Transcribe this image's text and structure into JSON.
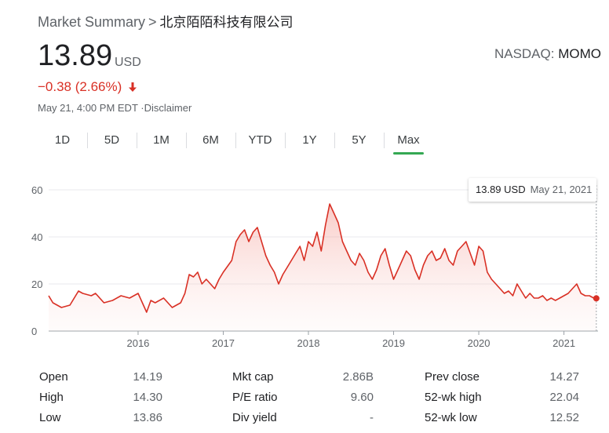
{
  "breadcrumb": {
    "section": "Market Summary",
    "separator": ">",
    "company": "北京陌陌科技有限公司"
  },
  "quote": {
    "price": "13.89",
    "currency": "USD",
    "change": "−0.38 (2.66%)",
    "timestamp": "May 21, 4:00 PM EDT",
    "disclaimer": "·Disclaimer",
    "exchange": "NASDAQ:",
    "symbol": "MOMO",
    "direction_icon": "arrow-down-icon",
    "negative_color": "#d93025"
  },
  "tabs": [
    "1D",
    "5D",
    "1M",
    "6M",
    "YTD",
    "1Y",
    "5Y",
    "Max"
  ],
  "active_tab": "Max",
  "tooltip": {
    "price": "13.89 USD",
    "date": "May 21, 2021"
  },
  "stats": [
    [
      {
        "label": "Open",
        "value": "14.19"
      },
      {
        "label": "High",
        "value": "14.30"
      },
      {
        "label": "Low",
        "value": "13.86"
      }
    ],
    [
      {
        "label": "Mkt cap",
        "value": "2.86B"
      },
      {
        "label": "P/E ratio",
        "value": "9.60"
      },
      {
        "label": "Div yield",
        "value": "-"
      }
    ],
    [
      {
        "label": "Prev close",
        "value": "14.27"
      },
      {
        "label": "52-wk high",
        "value": "22.04"
      },
      {
        "label": "52-wk low",
        "value": "12.52"
      }
    ]
  ],
  "chart_data": {
    "type": "area",
    "y_ticks": [
      0,
      20,
      40,
      60
    ],
    "x_ticks": [
      "2016",
      "2017",
      "2018",
      "2019",
      "2020",
      "2021"
    ],
    "ylim": [
      0,
      62
    ],
    "xlim": [
      2014.95,
      2021.4
    ],
    "line_color": "#d93025",
    "series": [
      {
        "x": [
          2014.95,
          2015.0,
          2015.1,
          2015.2,
          2015.3,
          2015.35,
          2015.45,
          2015.5,
          2015.6,
          2015.7,
          2015.8,
          2015.9,
          2016.0,
          2016.05,
          2016.1,
          2016.15,
          2016.2,
          2016.3,
          2016.4,
          2016.5,
          2016.55,
          2016.6,
          2016.65,
          2016.7,
          2016.75,
          2016.8,
          2016.9,
          2016.95,
          2017.0,
          2017.1,
          2017.15,
          2017.2,
          2017.25,
          2017.3,
          2017.35,
          2017.4,
          2017.45,
          2017.5,
          2017.55,
          2017.6,
          2017.65,
          2017.7,
          2017.8,
          2017.85,
          2017.9,
          2017.95,
          2018.0,
          2018.05,
          2018.1,
          2018.15,
          2018.2,
          2018.25,
          2018.3,
          2018.35,
          2018.4,
          2018.45,
          2018.5,
          2018.55,
          2018.6,
          2018.65,
          2018.7,
          2018.75,
          2018.8,
          2018.85,
          2018.9,
          2018.95,
          2019.0,
          2019.05,
          2019.1,
          2019.15,
          2019.2,
          2019.25,
          2019.3,
          2019.35,
          2019.4,
          2019.45,
          2019.5,
          2019.55,
          2019.6,
          2019.65,
          2019.7,
          2019.75,
          2019.8,
          2019.85,
          2019.9,
          2019.95,
          2020.0,
          2020.05,
          2020.1,
          2020.15,
          2020.2,
          2020.25,
          2020.3,
          2020.35,
          2020.4,
          2020.45,
          2020.5,
          2020.55,
          2020.6,
          2020.65,
          2020.7,
          2020.75,
          2020.8,
          2020.85,
          2020.9,
          2020.95,
          2021.0,
          2021.05,
          2021.1,
          2021.15,
          2021.2,
          2021.25,
          2021.3,
          2021.35,
          2021.38
        ],
        "y": [
          15,
          12,
          10,
          11,
          17,
          16,
          15,
          16,
          12,
          13,
          15,
          14,
          16,
          12,
          8,
          13,
          12,
          14,
          10,
          12,
          16,
          24,
          23,
          25,
          20,
          22,
          18,
          22,
          25,
          30,
          38,
          41,
          43,
          38,
          42,
          44,
          38,
          32,
          28,
          25,
          20,
          24,
          30,
          33,
          36,
          30,
          38,
          36,
          42,
          34,
          45,
          54,
          50,
          46,
          38,
          34,
          30,
          28,
          33,
          30,
          25,
          22,
          26,
          32,
          35,
          28,
          22,
          26,
          30,
          34,
          32,
          26,
          22,
          28,
          32,
          34,
          30,
          31,
          35,
          30,
          28,
          34,
          36,
          38,
          33,
          28,
          36,
          34,
          25,
          22,
          20,
          18,
          16,
          17,
          15,
          20,
          17,
          14,
          16,
          14,
          14,
          15,
          13,
          14,
          13,
          14,
          15,
          16,
          18,
          20,
          16,
          15,
          15,
          14,
          13.89
        ]
      }
    ]
  }
}
